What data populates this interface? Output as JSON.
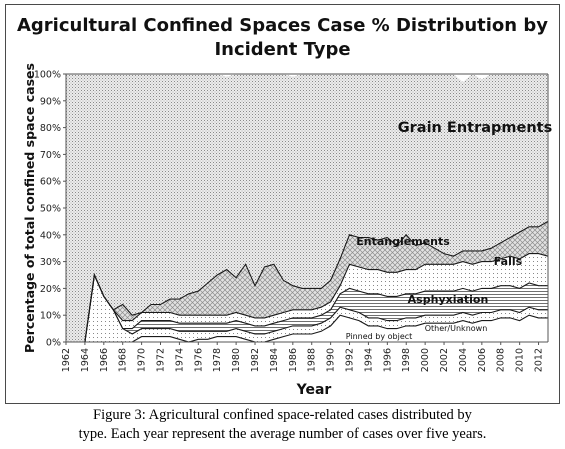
{
  "chart_data": {
    "type": "area",
    "title_lines": [
      "Agricultural Confined Spaces Case % Distribution by",
      "Incident Type"
    ],
    "xlabel": "Year",
    "ylabel": "Percentage of total confined space cases",
    "x": [
      1962,
      1963,
      1964,
      1965,
      1966,
      1967,
      1968,
      1969,
      1970,
      1971,
      1972,
      1973,
      1974,
      1975,
      1976,
      1977,
      1978,
      1979,
      1980,
      1981,
      1982,
      1983,
      1984,
      1985,
      1986,
      1987,
      1988,
      1989,
      1990,
      1991,
      1992,
      1993,
      1994,
      1995,
      1996,
      1997,
      1998,
      1999,
      2000,
      2001,
      2002,
      2003,
      2004,
      2005,
      2006,
      2007,
      2008,
      2009,
      2010,
      2011,
      2012,
      2013
    ],
    "x_ticks": [
      1962,
      1964,
      1966,
      1968,
      1970,
      1972,
      1974,
      1976,
      1978,
      1980,
      1982,
      1984,
      1986,
      1988,
      1990,
      1992,
      1994,
      1996,
      1998,
      2000,
      2002,
      2004,
      2006,
      2008,
      2010,
      2012
    ],
    "y_ticks": [
      "0%",
      "10%",
      "20%",
      "30%",
      "40%",
      "50%",
      "60%",
      "70%",
      "80%",
      "90%",
      "100%"
    ],
    "ylim": [
      0,
      100
    ],
    "series": [
      {
        "name": "Pinned by object",
        "pattern": "blank",
        "values": [
          0,
          0,
          0,
          0,
          0,
          0,
          0,
          0,
          2,
          2,
          2,
          2,
          1,
          0,
          1,
          1,
          2,
          2,
          2,
          1,
          0,
          0,
          1,
          2,
          3,
          3,
          3,
          4,
          6,
          10,
          9,
          8,
          6,
          6,
          5,
          5,
          6,
          6,
          7,
          7,
          7,
          7,
          8,
          7,
          8,
          8,
          9,
          9,
          8,
          10,
          9,
          9
        ]
      },
      {
        "name": "Other/Unknown",
        "pattern": "dots",
        "values": [
          0,
          0,
          0,
          25,
          17,
          12,
          5,
          3,
          3,
          3,
          3,
          3,
          3,
          4,
          3,
          3,
          2,
          2,
          3,
          3,
          3,
          3,
          3,
          3,
          3,
          3,
          3,
          3,
          3,
          3,
          3,
          3,
          3,
          3,
          3,
          3,
          3,
          3,
          3,
          3,
          3,
          3,
          3,
          3,
          3,
          3,
          3,
          3,
          3,
          3,
          3,
          3
        ]
      },
      {
        "name": "Asphyxiation",
        "pattern": "horizontal",
        "values": [
          0,
          0,
          0,
          0,
          0,
          0,
          0,
          2,
          3,
          3,
          3,
          3,
          3,
          3,
          3,
          3,
          3,
          3,
          3,
          3,
          3,
          3,
          3,
          3,
          3,
          3,
          3,
          3,
          3,
          5,
          8,
          8,
          9,
          9,
          9,
          9,
          9,
          9,
          9,
          9,
          9,
          9,
          9,
          9,
          9,
          9,
          9,
          9,
          9,
          9,
          9,
          9
        ]
      },
      {
        "name": "Falls",
        "pattern": "dots",
        "values": [
          0,
          0,
          0,
          0,
          0,
          0,
          3,
          3,
          3,
          3,
          3,
          3,
          3,
          3,
          3,
          3,
          3,
          3,
          3,
          3,
          3,
          3,
          3,
          3,
          3,
          3,
          3,
          3,
          3,
          3,
          9,
          9,
          9,
          9,
          9,
          9,
          9,
          9,
          10,
          10,
          10,
          10,
          10,
          10,
          10,
          10,
          10,
          11,
          11,
          11,
          12,
          11
        ]
      },
      {
        "name": "Entanglements",
        "pattern": "crosshatch",
        "values": [
          0,
          0,
          0,
          0,
          0,
          0,
          6,
          2,
          0,
          3,
          3,
          5,
          6,
          8,
          9,
          12,
          15,
          17,
          13,
          19,
          12,
          19,
          19,
          12,
          9,
          8,
          8,
          7,
          8,
          10,
          11,
          11,
          12,
          11,
          13,
          10,
          13,
          9,
          8,
          6,
          4,
          3,
          4,
          5,
          4,
          5,
          6,
          7,
          10,
          10,
          10,
          13
        ]
      },
      {
        "name": "Grain Entrapments",
        "pattern": "fine-dots",
        "values": [
          100,
          100,
          100,
          75,
          83,
          88,
          86,
          90,
          89,
          86,
          86,
          84,
          84,
          82,
          81,
          78,
          75,
          72,
          76,
          71,
          79,
          72,
          71,
          77,
          78,
          80,
          80,
          80,
          77,
          69,
          60,
          61,
          61,
          62,
          61,
          64,
          60,
          64,
          63,
          65,
          67,
          68,
          63,
          66,
          64,
          65,
          63,
          61,
          59,
          57,
          57,
          55
        ]
      }
    ],
    "grid": false,
    "legend": "none (series labeled inline)"
  },
  "caption_lines": [
    "Figure 3: Agricultural confined space-related cases distributed by",
    "type. Each year represent the average number of cases over five years."
  ]
}
